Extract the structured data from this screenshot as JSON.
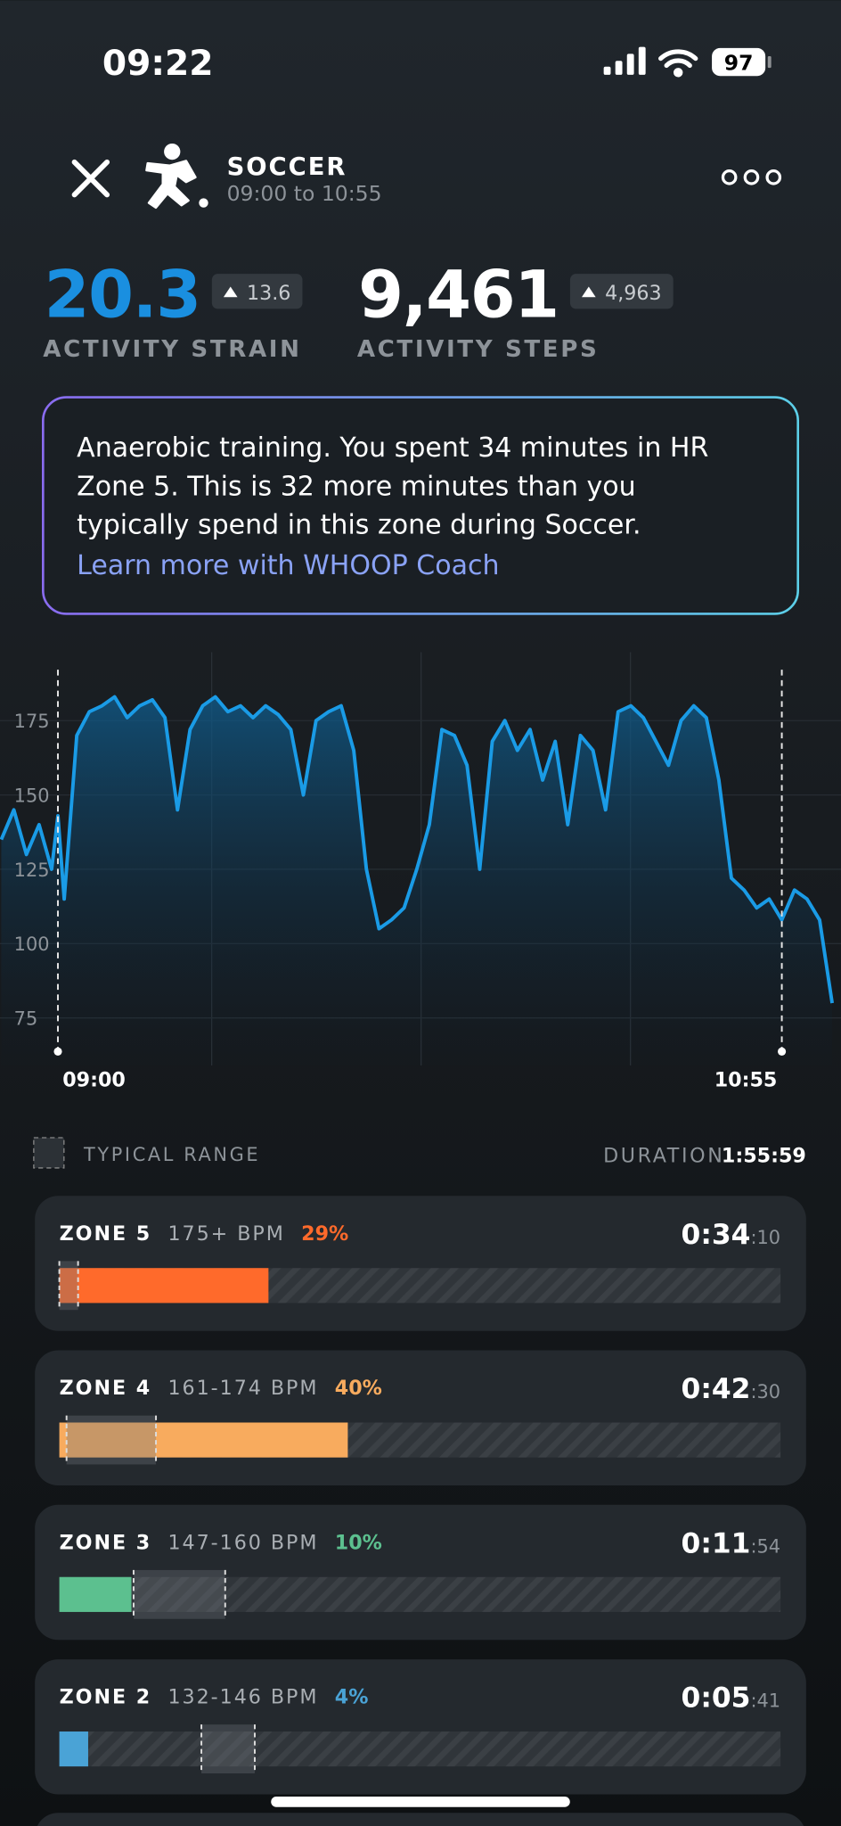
{
  "status_bar": {
    "time": "09:22",
    "battery": "97"
  },
  "header": {
    "title": "SOCCER",
    "subtitle": "09:00 to 10:55"
  },
  "metrics": [
    {
      "value": "20.3",
      "delta": "13.6",
      "label": "ACTIVITY STRAIN"
    },
    {
      "value": "9,461",
      "delta": "4,963",
      "label": "ACTIVITY STEPS"
    }
  ],
  "insight": {
    "lines": [
      "Anaerobic training. You spent 34 minutes in HR",
      "Zone 5. This is 32 more minutes than you",
      "typically spend in this zone during Soccer."
    ],
    "link": "Learn more with WHOOP Coach"
  },
  "hr_chart": {
    "type": "line",
    "color": "#1a9be6",
    "grid": true,
    "xlim": [
      -9.2,
      124.4
    ],
    "ylim": [
      59,
      198
    ],
    "yticks": [
      75,
      100,
      125,
      150,
      175
    ],
    "xticks": [
      {
        "value": 0,
        "label": "09:00"
      },
      {
        "value": 115,
        "label": "10:55"
      }
    ],
    "x": [
      -9,
      -7,
      -5,
      -3,
      -1,
      0,
      1,
      3,
      5,
      7,
      9,
      11,
      13,
      15,
      17,
      19,
      21,
      23,
      25,
      27,
      29,
      31,
      33,
      35,
      37,
      39,
      41,
      43,
      45,
      47,
      49,
      51,
      53,
      55,
      57,
      59,
      61,
      63,
      65,
      67,
      69,
      71,
      73,
      75,
      77,
      79,
      81,
      83,
      85,
      87,
      89,
      91,
      93,
      95,
      97,
      99,
      101,
      103,
      105,
      107,
      109,
      111,
      113,
      115,
      117,
      119,
      121,
      123
    ],
    "values": [
      135,
      145,
      130,
      140,
      125,
      143,
      115,
      170,
      178,
      180,
      183,
      176,
      180,
      182,
      176,
      145,
      172,
      180,
      183,
      178,
      180,
      176,
      180,
      177,
      172,
      150,
      175,
      178,
      180,
      165,
      125,
      105,
      108,
      112,
      125,
      140,
      172,
      170,
      160,
      125,
      168,
      175,
      165,
      172,
      155,
      168,
      140,
      170,
      165,
      145,
      178,
      180,
      176,
      168,
      160,
      175,
      180,
      176,
      155,
      122,
      118,
      112,
      115,
      108,
      118,
      115,
      108,
      80
    ]
  },
  "legend": {
    "typical": "TYPICAL RANGE",
    "duration_label": "DURATION",
    "duration": "1:55:59"
  },
  "zones": [
    {
      "name": "ZONE 5",
      "bpm": "175+ BPM",
      "percent": 29,
      "percent_label": "29%",
      "time": "0:34",
      "seconds": ":10",
      "typical_range": [
        0,
        2.6
      ],
      "color": "#ff6a2b"
    },
    {
      "name": "ZONE 4",
      "bpm": "161-174 BPM",
      "percent": 40,
      "percent_label": "40%",
      "time": "0:42",
      "seconds": ":30",
      "typical_range": [
        1,
        13.4
      ],
      "color": "#f8ab5e"
    },
    {
      "name": "ZONE 3",
      "bpm": "147-160 BPM",
      "percent": 10,
      "percent_label": "10%",
      "time": "0:11",
      "seconds": ":54",
      "typical_range": [
        10.3,
        23
      ],
      "color": "#5cc08f"
    },
    {
      "name": "ZONE 2",
      "bpm": "132-146 BPM",
      "percent": 4,
      "percent_label": "4%",
      "time": "0:05",
      "seconds": ":41",
      "typical_range": [
        19.7,
        27.1
      ],
      "color": "#4aa3d6"
    }
  ]
}
